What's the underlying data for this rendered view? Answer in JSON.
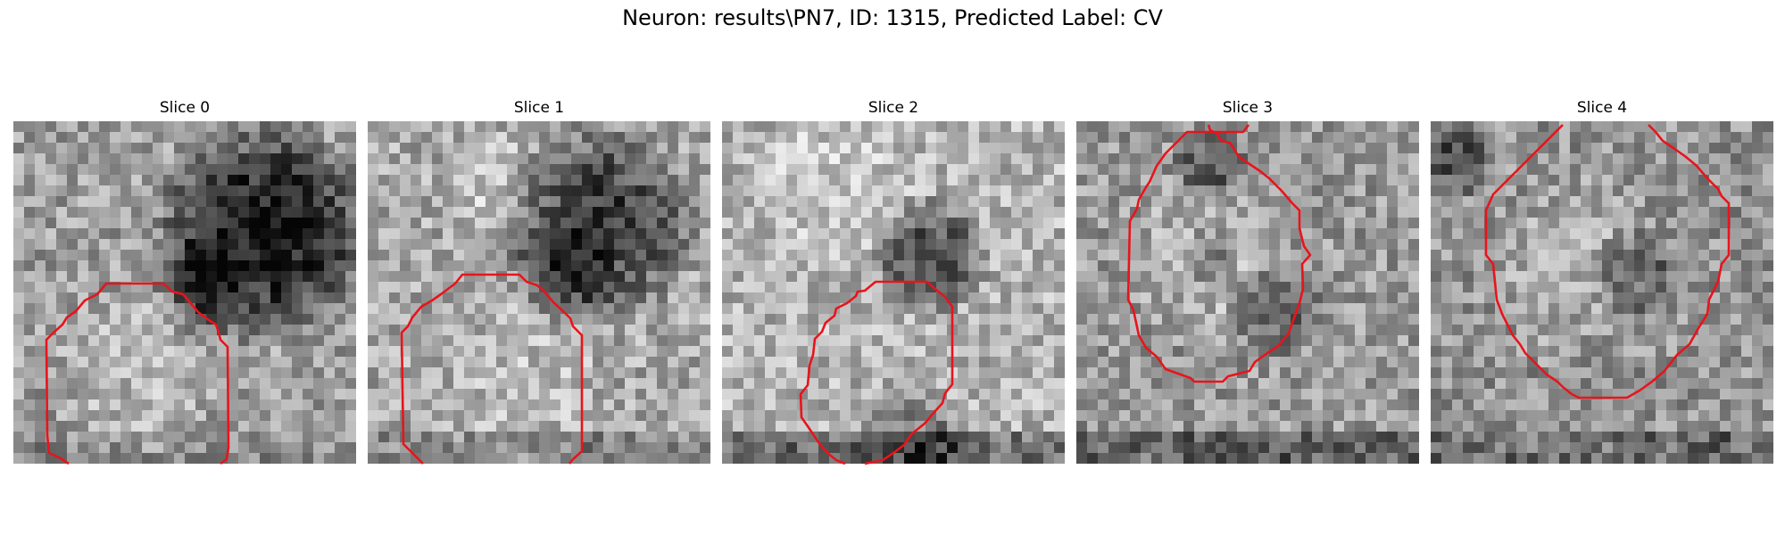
{
  "figure": {
    "title": "Neuron: results\\PN7, ID: 1315, Predicted Label: CV"
  },
  "panels": [
    {
      "title": "Slice 0",
      "image": "grayscale-em-tile",
      "contour_color": "#e8141c"
    },
    {
      "title": "Slice 1",
      "image": "grayscale-em-tile",
      "contour_color": "#e8141c"
    },
    {
      "title": "Slice 2",
      "image": "grayscale-em-tile",
      "contour_color": "#e8141c"
    },
    {
      "title": "Slice 3",
      "image": "grayscale-em-tile",
      "contour_color": "#e8141c"
    },
    {
      "title": "Slice 4",
      "image": "grayscale-em-tile",
      "contour_color": "#e8141c"
    }
  ]
}
